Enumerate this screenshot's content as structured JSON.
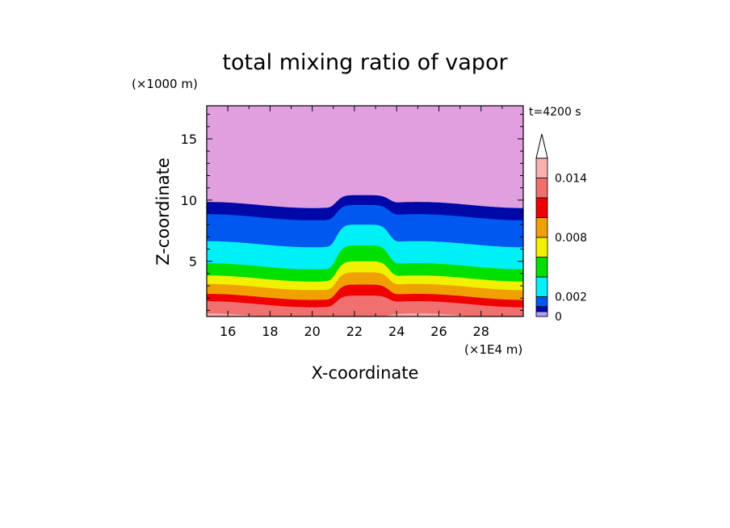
{
  "chart_data": {
    "type": "heatmap",
    "title": "total mixing ratio of vapor",
    "time_label": "t=4200 s",
    "xlabel": "X-coordinate",
    "ylabel": "Z-coordinate",
    "x_unit": "(×1E4 m)",
    "y_unit": "(×1000 m)",
    "xlim": [
      15,
      30
    ],
    "ylim": [
      0.5,
      17.7
    ],
    "x_ticks": [
      "16",
      "18",
      "20",
      "22",
      "24",
      "26",
      "28"
    ],
    "y_ticks": [
      "5",
      "10",
      "15"
    ],
    "colorbar_labels": [
      "0",
      "0.002",
      "0.008",
      "0.014"
    ],
    "colorbar_extend": "max",
    "levels": [
      0,
      0.001,
      0.002,
      0.004,
      0.006,
      0.008,
      0.01,
      0.012,
      0.014,
      0.016
    ],
    "colors": [
      "#b0a0ff",
      "#0008a8",
      "#0058f0",
      "#00f0f8",
      "#00e000",
      "#f0f000",
      "#f0a000",
      "#f00000",
      "#f07070",
      "#f8b0b0",
      "#e0a0e0"
    ],
    "bands": [
      {
        "top_outer_km": 9.6,
        "top_hump_km": 10.4,
        "colorIndex": 1
      },
      {
        "top_outer_km": 8.6,
        "top_hump_km": 9.6,
        "colorIndex": 2
      },
      {
        "top_outer_km": 6.4,
        "top_hump_km": 8.0,
        "colorIndex": 3
      },
      {
        "top_outer_km": 4.6,
        "top_hump_km": 6.3,
        "colorIndex": 4
      },
      {
        "top_outer_km": 3.6,
        "top_hump_km": 5.0,
        "colorIndex": 5
      },
      {
        "top_outer_km": 2.9,
        "top_hump_km": 4.1,
        "colorIndex": 6
      },
      {
        "top_outer_km": 2.1,
        "top_hump_km": 3.1,
        "colorIndex": 7
      },
      {
        "top_outer_km": 1.5,
        "top_hump_km": 2.2,
        "colorIndex": 8
      },
      {
        "top_outer_km": 0.5,
        "top_hump_km": 0.5,
        "colorIndex": 9
      }
    ],
    "background_colorIndex": 10
  }
}
